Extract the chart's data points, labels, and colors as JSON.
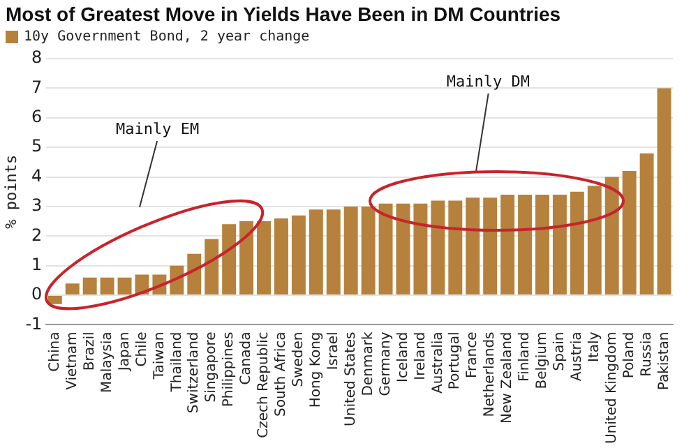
{
  "chart_data": {
    "type": "bar",
    "title": "Most of Greatest Move in Yields Have Been in DM Countries",
    "ylabel": "% points",
    "categories": [
      "China",
      "Vietnam",
      "Brazil",
      "Malaysia",
      "Japan",
      "Chile",
      "Taiwan",
      "Thailand",
      "Switzerland",
      "Singapore",
      "Philippines",
      "Canada",
      "Czech Republic",
      "South Africa",
      "Sweden",
      "Hong Kong",
      "Israel",
      "United States",
      "Denmark",
      "Germany",
      "Iceland",
      "Ireland",
      "Australia",
      "Portugal",
      "France",
      "Netherlands",
      "New Zealand",
      "Finland",
      "Belgium",
      "Spain",
      "Austria",
      "Italy",
      "United Kingdom",
      "Poland",
      "Russia",
      "Pakistan"
    ],
    "series": [
      {
        "name": "10y Government Bond, 2 year change",
        "color": "#b5813c",
        "values": [
          -0.3,
          0.4,
          0.6,
          0.6,
          0.6,
          0.7,
          0.7,
          1.0,
          1.4,
          1.9,
          2.4,
          2.5,
          2.5,
          2.6,
          2.7,
          2.9,
          2.9,
          3.0,
          3.0,
          3.1,
          3.1,
          3.1,
          3.2,
          3.2,
          3.3,
          3.3,
          3.4,
          3.4,
          3.4,
          3.4,
          3.5,
          3.7,
          4.0,
          4.2,
          4.8,
          7.0
        ]
      }
    ],
    "ylim": [
      -1,
      8
    ],
    "yticks": [
      -1,
      0,
      1,
      2,
      3,
      4,
      5,
      6,
      7,
      8
    ],
    "grid": "y",
    "legend": "top left",
    "annotations": [
      "Mainly EM",
      "Mainly DM"
    ]
  }
}
